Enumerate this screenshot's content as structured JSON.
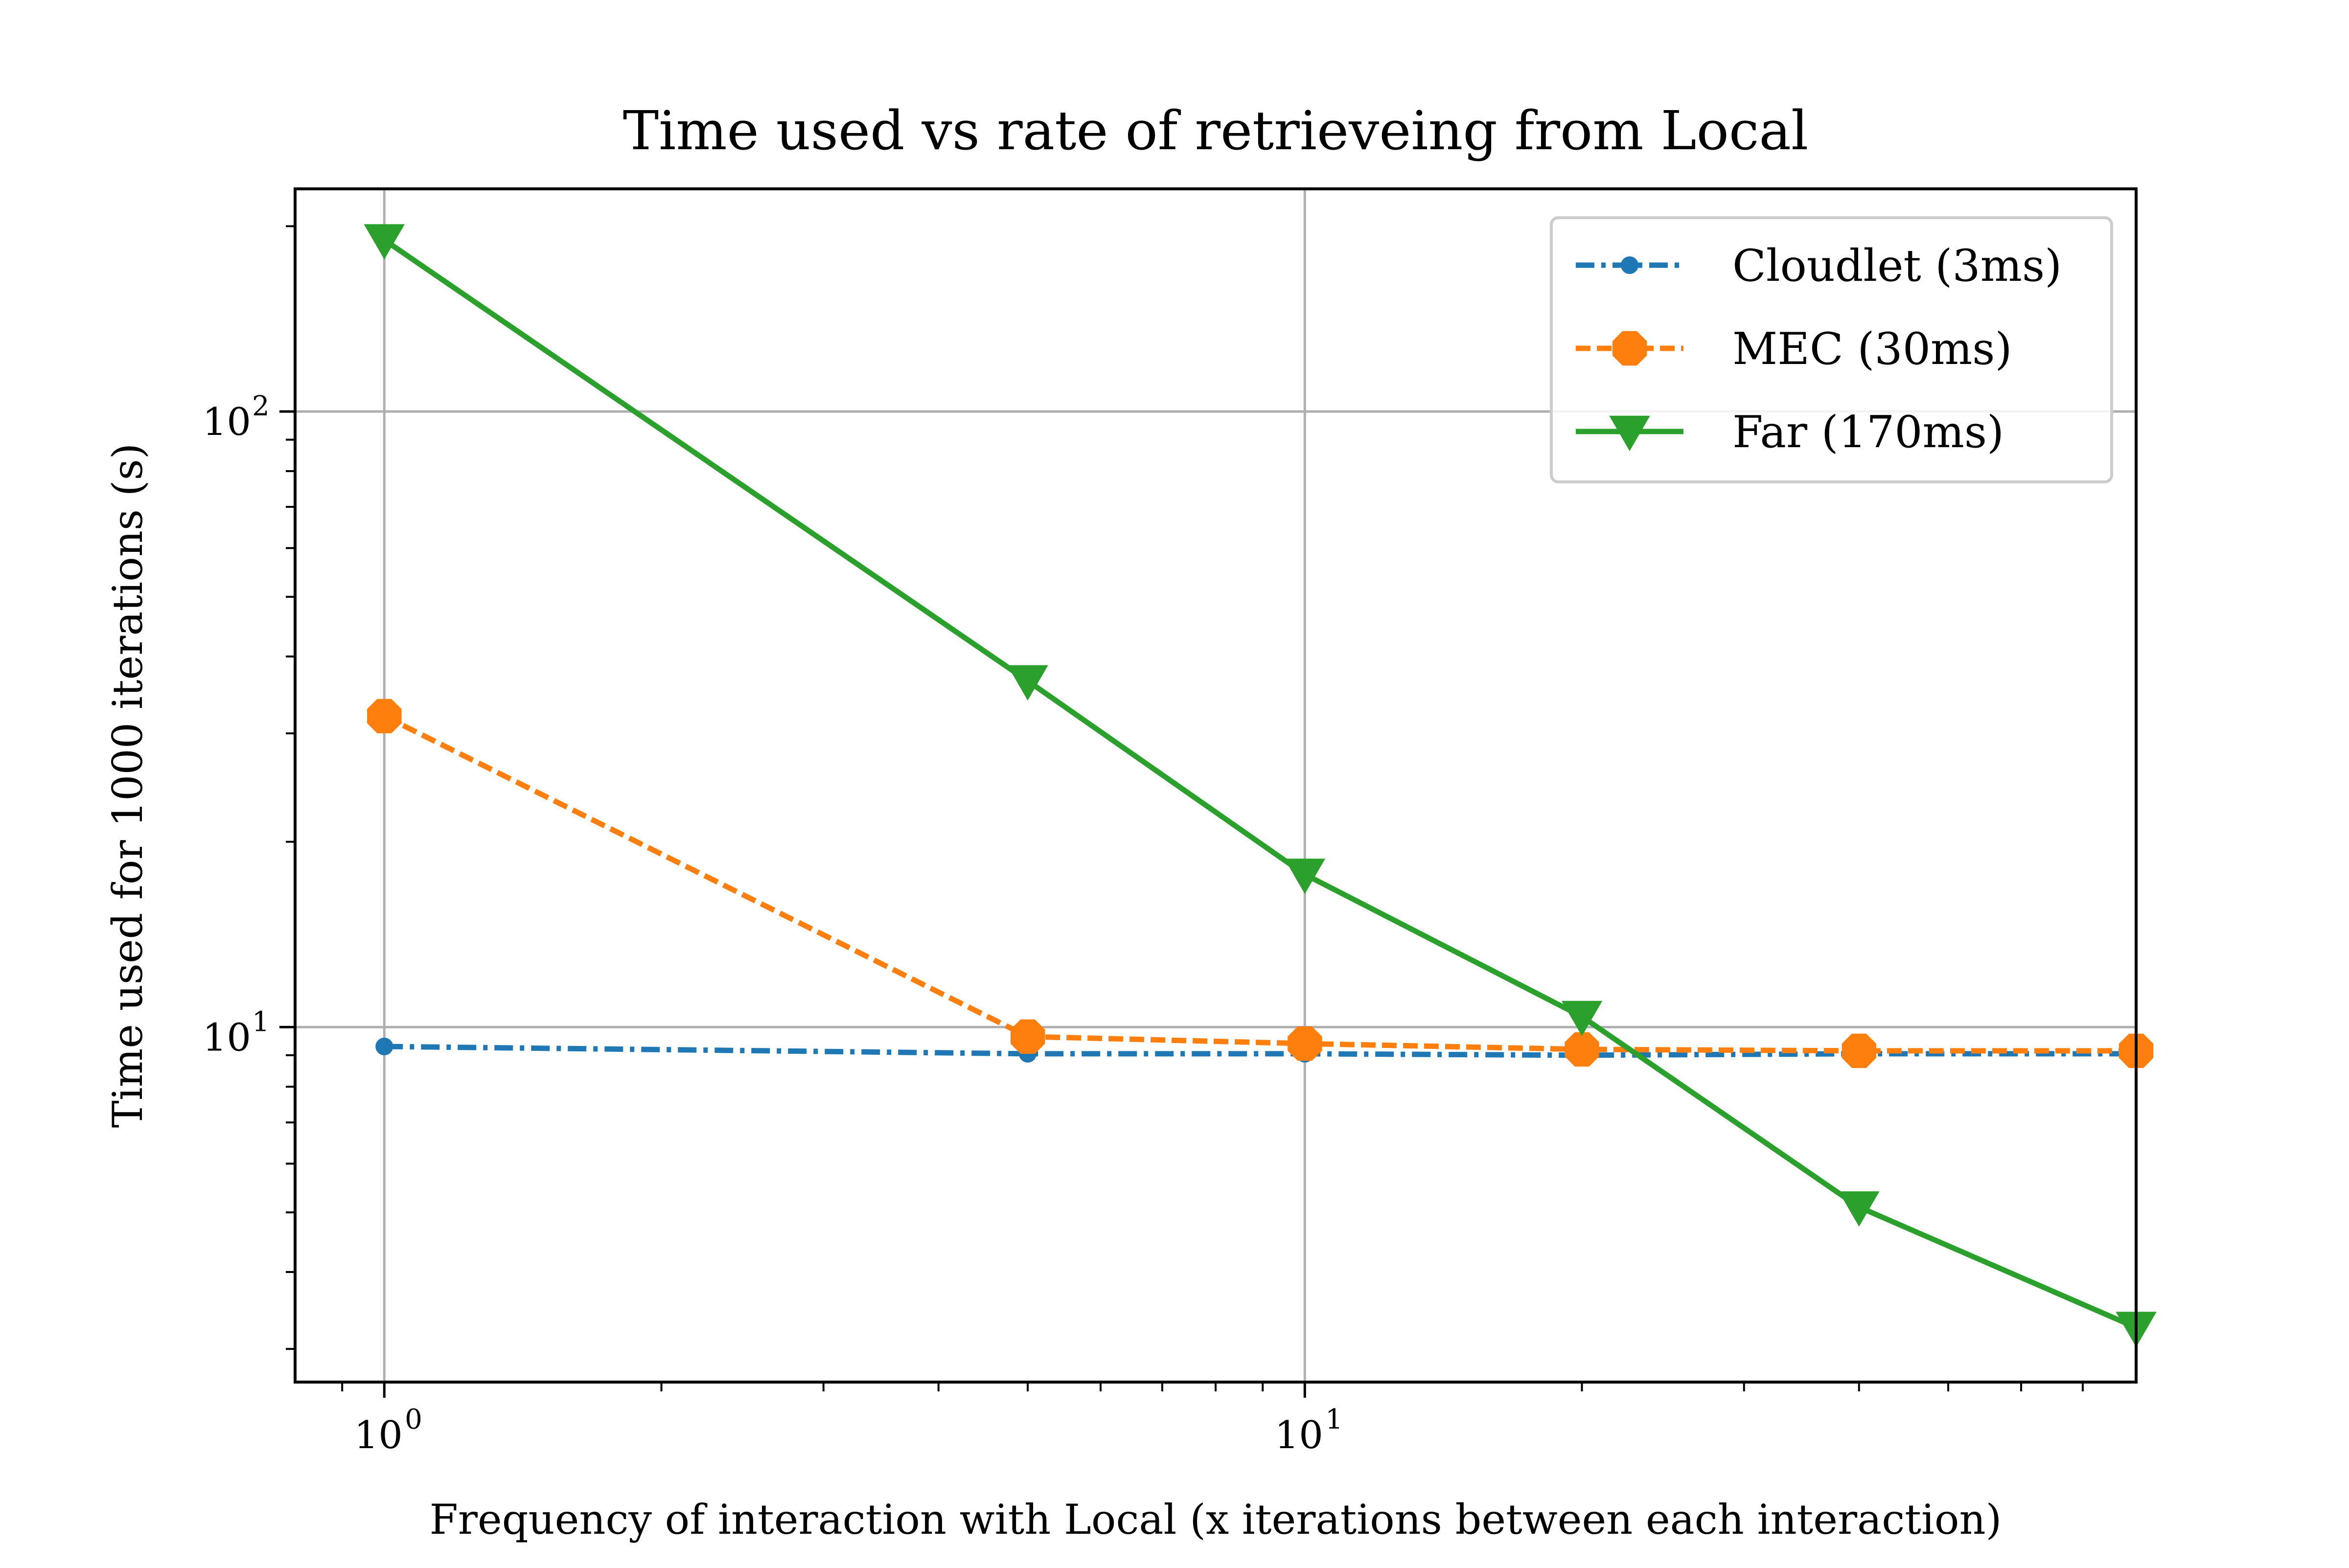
{
  "chart_data": {
    "type": "line",
    "title": "Time used vs rate of retrieveing from Local",
    "xlabel": "Frequency of interaction with Local (x iterations between each interaction)",
    "ylabel": "Time used for 1000 iterations (s)",
    "x_scale": "log",
    "y_scale": "log",
    "xlim": [
      0.8,
      80
    ],
    "ylim": [
      2.65,
      230
    ],
    "x_ticks": [
      {
        "value": 1,
        "label": "10",
        "exp": "0"
      },
      {
        "value": 10,
        "label": "10",
        "exp": "1"
      }
    ],
    "y_ticks": [
      {
        "value": 10,
        "label": "10",
        "exp": "1"
      },
      {
        "value": 100,
        "label": "10",
        "exp": "2"
      }
    ],
    "grid": true,
    "legend_position": "top-right",
    "x": [
      1,
      5,
      10,
      20,
      40,
      80
    ],
    "series": [
      {
        "name": "Cloudlet (3ms)",
        "values": [
          9.3,
          9.05,
          9.05,
          9.0,
          9.05,
          9.05
        ],
        "color": "#1f77b4",
        "linestyle": "dashdot",
        "marker": "circle"
      },
      {
        "name": "MEC (30ms)",
        "values": [
          32.0,
          9.65,
          9.4,
          9.2,
          9.15,
          9.15
        ],
        "color": "#ff7f0e",
        "linestyle": "dashed",
        "marker": "octagon"
      },
      {
        "name": "Far (170ms)",
        "values": [
          190.0,
          36.5,
          17.7,
          10.4,
          5.1,
          3.25
        ],
        "color": "#2ca02c",
        "linestyle": "solid",
        "marker": "triangle-down"
      }
    ]
  }
}
